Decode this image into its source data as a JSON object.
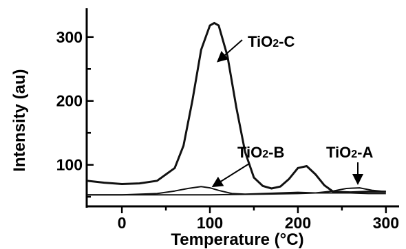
{
  "chart_data": {
    "type": "line",
    "xlabel": "Temperature (°C)",
    "ylabel": "Intensity (au)",
    "xlim": [
      -40,
      315
    ],
    "ylim": [
      35,
      345
    ],
    "x_ticks": [
      0,
      100,
      200,
      300
    ],
    "y_ticks": [
      100,
      200,
      300
    ],
    "grid": false,
    "series": [
      {
        "name": "TiO2-C",
        "label_main": "TiO",
        "label_sub": "2",
        "label_tail": "-C",
        "x": [
          -40,
          -20,
          0,
          20,
          40,
          60,
          70,
          80,
          90,
          100,
          105,
          110,
          120,
          130,
          140,
          150,
          160,
          170,
          180,
          190,
          200,
          210,
          220,
          230,
          240,
          260,
          280,
          300
        ],
        "y": [
          75,
          72,
          70,
          71,
          75,
          95,
          130,
          200,
          280,
          318,
          322,
          318,
          270,
          190,
          120,
          80,
          67,
          63,
          66,
          78,
          95,
          98,
          85,
          68,
          58,
          57,
          58,
          58
        ]
      },
      {
        "name": "TiO2-B",
        "label_main": "TiO",
        "label_sub": "2",
        "label_tail": "-B",
        "x": [
          -40,
          0,
          40,
          60,
          75,
          90,
          100,
          110,
          125,
          140,
          160,
          180,
          200,
          220,
          240,
          260,
          280,
          300
        ],
        "y": [
          53,
          53,
          55,
          59,
          63,
          66,
          64,
          60,
          55,
          54,
          55,
          56,
          57,
          56,
          56,
          56,
          55,
          55
        ]
      },
      {
        "name": "TiO2-A",
        "label_main": "TiO",
        "label_sub": "2",
        "label_tail": "-A",
        "x": [
          -40,
          0,
          100,
          160,
          200,
          220,
          240,
          255,
          270,
          285,
          300
        ],
        "y": [
          53,
          53,
          53,
          54,
          55,
          56,
          59,
          63,
          64,
          60,
          58
        ]
      }
    ]
  }
}
